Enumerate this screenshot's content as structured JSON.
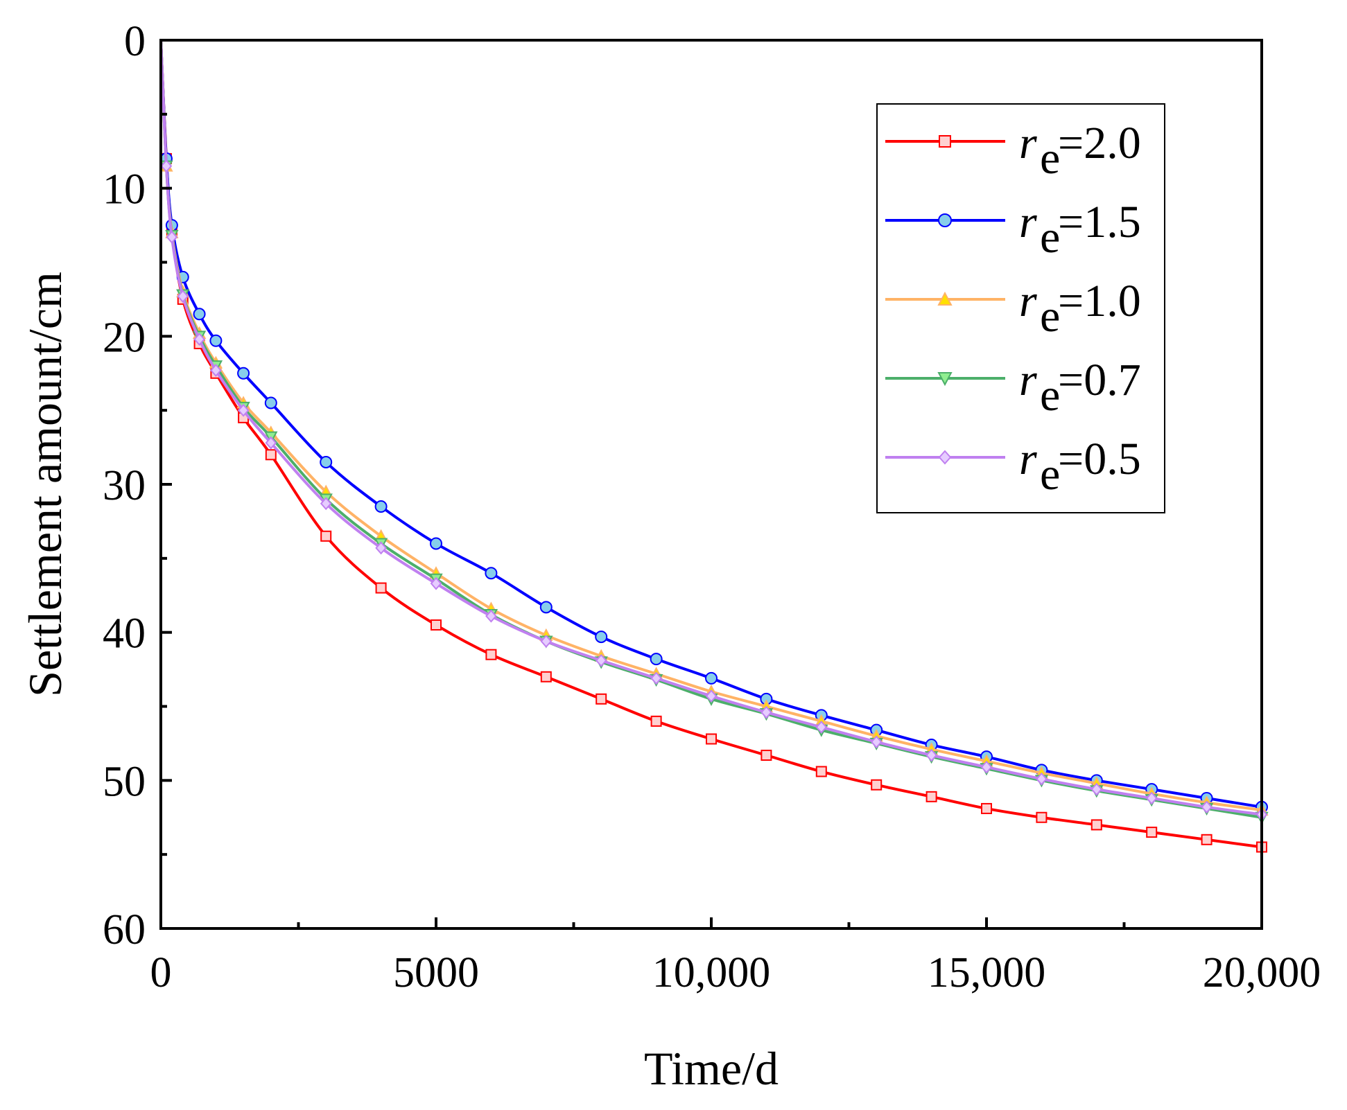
{
  "chart_data": {
    "type": "line",
    "title": "",
    "xlabel": "Time/d",
    "ylabel": "Settlement amount/cm",
    "xlim": [
      0,
      20000
    ],
    "ylim": [
      0,
      60
    ],
    "y_inverted": true,
    "x_ticks": [
      0,
      5000,
      10000,
      15000,
      20000
    ],
    "x_tick_labels": [
      "0",
      "5000",
      "10,000",
      "15,000",
      "20,000"
    ],
    "y_ticks": [
      0,
      10,
      20,
      30,
      40,
      50,
      60
    ],
    "y_tick_labels": [
      "0",
      "10",
      "20",
      "30",
      "40",
      "50",
      "60"
    ],
    "grid": false,
    "legend_position": "top-right",
    "series": [
      {
        "name": "r_e=2.0",
        "label_main": "r",
        "label_sub": "e",
        "label_value": "=2.0",
        "color": "#ff0000",
        "marker_fill": "#ffd0d0",
        "marker": "square",
        "x": [
          0,
          100,
          200,
          400,
          700,
          1000,
          1500,
          2000,
          3000,
          4000,
          5000,
          6000,
          7000,
          8000,
          9000,
          10000,
          11000,
          12000,
          13000,
          14000,
          15000,
          16000,
          17000,
          18000,
          19000,
          20000
        ],
        "values": [
          0,
          8,
          13,
          17.5,
          20.5,
          22.5,
          25.5,
          28,
          33.5,
          37,
          39.5,
          41.5,
          43,
          44.5,
          46,
          47.2,
          48.3,
          49.4,
          50.3,
          51.1,
          51.9,
          52.5,
          53,
          53.5,
          54,
          54.5
        ]
      },
      {
        "name": "r_e=1.5",
        "label_main": "r",
        "label_sub": "e",
        "label_value": "=1.5",
        "color": "#0000ff",
        "marker_fill": "#87ceeb",
        "marker": "circle",
        "x": [
          0,
          100,
          200,
          400,
          700,
          1000,
          1500,
          2000,
          3000,
          4000,
          5000,
          6000,
          7000,
          8000,
          9000,
          10000,
          11000,
          12000,
          13000,
          14000,
          15000,
          16000,
          17000,
          18000,
          19000,
          20000
        ],
        "values": [
          0,
          8,
          12.5,
          16,
          18.5,
          20.3,
          22.5,
          24.5,
          28.5,
          31.5,
          34,
          36,
          38.3,
          40.3,
          41.8,
          43.1,
          44.5,
          45.6,
          46.6,
          47.6,
          48.4,
          49.3,
          50,
          50.6,
          51.2,
          51.8
        ]
      },
      {
        "name": "r_e=1.0",
        "label_main": "r",
        "label_sub": "e",
        "label_value": "=1.0",
        "color": "#ffb366",
        "marker_fill": "#ffe000",
        "marker": "triangle-up",
        "x": [
          0,
          100,
          200,
          400,
          700,
          1000,
          1500,
          2000,
          3000,
          4000,
          5000,
          6000,
          7000,
          8000,
          9000,
          10000,
          11000,
          12000,
          13000,
          14000,
          15000,
          16000,
          17000,
          18000,
          19000,
          20000
        ],
        "values": [
          0,
          8.5,
          13,
          17,
          19.8,
          21.8,
          24.5,
          26.5,
          30.5,
          33.5,
          36,
          38.4,
          40.2,
          41.6,
          42.8,
          44,
          45,
          46,
          47,
          47.9,
          48.7,
          49.5,
          50.2,
          50.9,
          51.5,
          52
        ]
      },
      {
        "name": "r_e=0.7",
        "label_main": "r",
        "label_sub": "e",
        "label_value": "=0.7",
        "color": "#4caf6a",
        "marker_fill": "#90ee90",
        "marker": "triangle-down",
        "x": [
          0,
          100,
          200,
          400,
          700,
          1000,
          1500,
          2000,
          3000,
          4000,
          5000,
          6000,
          7000,
          8000,
          9000,
          10000,
          11000,
          12000,
          13000,
          14000,
          15000,
          16000,
          17000,
          18000,
          19000,
          20000
        ],
        "values": [
          0,
          8.5,
          13.2,
          17.2,
          20,
          22,
          24.8,
          26.8,
          31,
          34,
          36.4,
          38.8,
          40.6,
          42,
          43.2,
          44.5,
          45.5,
          46.6,
          47.5,
          48.4,
          49.2,
          50,
          50.7,
          51.3,
          51.9,
          52.5
        ]
      },
      {
        "name": "r_e=0.5",
        "label_main": "r",
        "label_sub": "e",
        "label_value": "=0.5",
        "color": "#c080f0",
        "marker_fill": "#e6ccff",
        "marker": "diamond",
        "x": [
          0,
          100,
          200,
          400,
          700,
          1000,
          1500,
          2000,
          3000,
          4000,
          5000,
          6000,
          7000,
          8000,
          9000,
          10000,
          11000,
          12000,
          13000,
          14000,
          15000,
          16000,
          17000,
          18000,
          19000,
          20000
        ],
        "values": [
          0,
          8.5,
          13.3,
          17.3,
          20.2,
          22.3,
          25,
          27.2,
          31.3,
          34.3,
          36.7,
          38.9,
          40.6,
          41.9,
          43.1,
          44.3,
          45.4,
          46.4,
          47.4,
          48.3,
          49.1,
          49.9,
          50.6,
          51.2,
          51.8,
          52.3
        ]
      }
    ]
  }
}
